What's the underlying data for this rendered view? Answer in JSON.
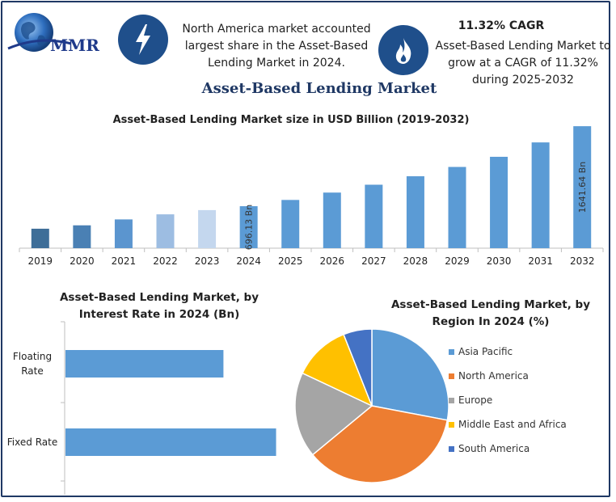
{
  "header": {
    "logo_text": "MMR",
    "info_left": [
      "North America market accounted",
      "largest share in the Asset-Based",
      "Lending Market in 2024."
    ],
    "cagr_title": "11.32% CAGR",
    "info_right": [
      "Asset-Based Lending Market to",
      "grow at a CAGR of 11.32%",
      "during 2025-2032"
    ],
    "main_title": "Asset-Based Lending Market",
    "badge_left_icon": "lightning-icon",
    "badge_right_icon": "flame-icon",
    "badge_color": "#1f4f8b"
  },
  "chart_data": [
    {
      "type": "bar",
      "title": "Asset-Based Lending Market size in USD Billion (2019-2032)",
      "categories": [
        "2019",
        "2020",
        "2021",
        "2022",
        "2023",
        "2024",
        "2025",
        "2026",
        "2027",
        "2028",
        "2029",
        "2030",
        "2031",
        "2032"
      ],
      "values": [
        430,
        470,
        540,
        600,
        650,
        696.13,
        770,
        857,
        950,
        1050,
        1160,
        1280,
        1450,
        1641.64
      ],
      "ylim": [
        200,
        1700
      ],
      "data_labels": [
        {
          "category": "2024",
          "text": "696.13 Bn"
        },
        {
          "category": "2032",
          "text": "1641.64 Bn"
        }
      ],
      "bar_colors": [
        "#3e6e98",
        "#4a80b4",
        "#5b95cf",
        "#9dbde2",
        "#c4d7ee",
        "#5b9bd5",
        "#5b9bd5",
        "#5b9bd5",
        "#5b9bd5",
        "#5b9bd5",
        "#5b9bd5",
        "#5b9bd5",
        "#5b9bd5",
        "#5b9bd5"
      ]
    },
    {
      "type": "bar",
      "orientation": "horizontal",
      "title": "Asset-Based Lending Market, by Interest Rate in 2024 (Bn)",
      "categories": [
        "Floating Rate",
        "Fixed Rate"
      ],
      "category_lines": [
        [
          "Floating",
          "Rate"
        ],
        [
          "Fixed Rate"
        ]
      ],
      "values": [
        270,
        360
      ],
      "xlim": [
        0,
        380
      ],
      "color": "#5b9bd5"
    },
    {
      "type": "pie",
      "title": "Asset-Based Lending Market, by Region In 2024 (%)",
      "labels": [
        "Asia Pacific",
        "North America",
        "Europe",
        "Middle East and Africa",
        "South America"
      ],
      "values": [
        28,
        36,
        18,
        12,
        6
      ],
      "colors": [
        "#5b9bd5",
        "#ed7d31",
        "#a5a5a5",
        "#ffc000",
        "#4472c4"
      ],
      "legend_position": "right"
    }
  ]
}
